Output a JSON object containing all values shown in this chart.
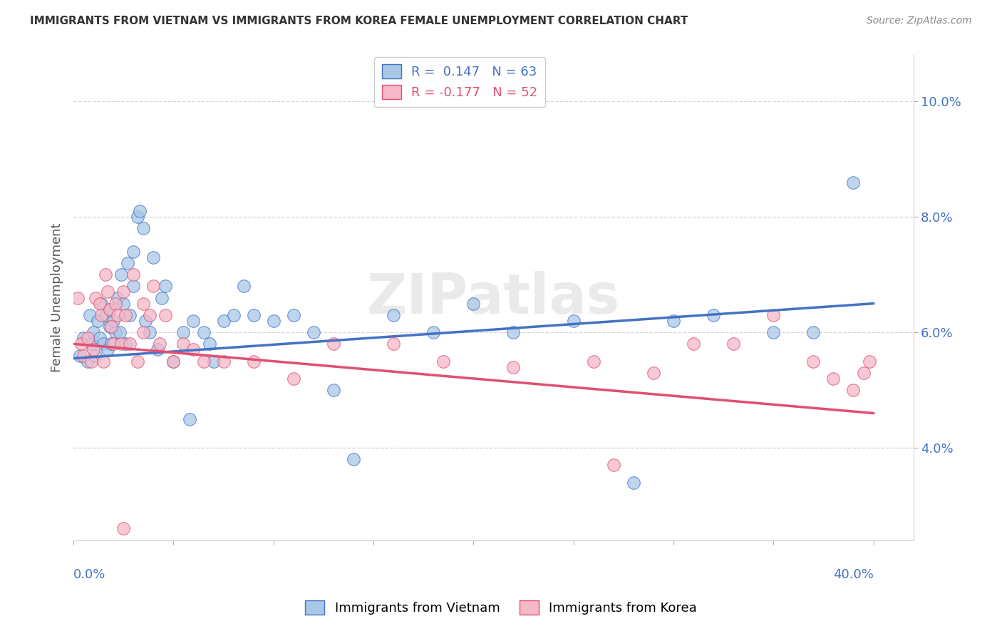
{
  "title": "IMMIGRANTS FROM VIETNAM VS IMMIGRANTS FROM KOREA FEMALE UNEMPLOYMENT CORRELATION CHART",
  "source": "Source: ZipAtlas.com",
  "ylabel": "Female Unemployment",
  "ytick_labels": [
    "4.0%",
    "6.0%",
    "8.0%",
    "10.0%"
  ],
  "ytick_values": [
    0.04,
    0.06,
    0.08,
    0.1
  ],
  "xlim": [
    0.0,
    0.42
  ],
  "ylim": [
    0.024,
    0.108
  ],
  "legend1_R": "0.147",
  "legend1_N": "63",
  "legend2_R": "-0.177",
  "legend2_N": "52",
  "color_vietnam": "#a8c8e8",
  "color_korea": "#f4b8c8",
  "line_color_vietnam": "#4472c4",
  "line_color_korea": "#e05070",
  "vietnam_trend_x0": 0.0,
  "vietnam_trend_y0": 0.0555,
  "vietnam_trend_x1": 0.4,
  "vietnam_trend_y1": 0.065,
  "korea_trend_x0": 0.0,
  "korea_trend_y0": 0.058,
  "korea_trend_x1": 0.4,
  "korea_trend_y1": 0.046,
  "vietnam_x": [
    0.003,
    0.005,
    0.007,
    0.008,
    0.009,
    0.01,
    0.011,
    0.012,
    0.013,
    0.014,
    0.015,
    0.016,
    0.017,
    0.018,
    0.018,
    0.019,
    0.02,
    0.021,
    0.022,
    0.023,
    0.024,
    0.025,
    0.026,
    0.027,
    0.028,
    0.03,
    0.03,
    0.032,
    0.033,
    0.035,
    0.036,
    0.038,
    0.04,
    0.042,
    0.044,
    0.046,
    0.05,
    0.055,
    0.058,
    0.06,
    0.065,
    0.068,
    0.07,
    0.075,
    0.08,
    0.085,
    0.09,
    0.1,
    0.11,
    0.12,
    0.13,
    0.14,
    0.16,
    0.18,
    0.2,
    0.22,
    0.25,
    0.28,
    0.3,
    0.32,
    0.35,
    0.37,
    0.39
  ],
  "vietnam_y": [
    0.056,
    0.059,
    0.055,
    0.063,
    0.058,
    0.06,
    0.056,
    0.062,
    0.059,
    0.065,
    0.058,
    0.063,
    0.057,
    0.061,
    0.064,
    0.058,
    0.062,
    0.06,
    0.066,
    0.06,
    0.07,
    0.065,
    0.058,
    0.072,
    0.063,
    0.074,
    0.068,
    0.08,
    0.081,
    0.078,
    0.062,
    0.06,
    0.073,
    0.057,
    0.066,
    0.068,
    0.055,
    0.06,
    0.045,
    0.062,
    0.06,
    0.058,
    0.055,
    0.062,
    0.063,
    0.068,
    0.063,
    0.062,
    0.063,
    0.06,
    0.05,
    0.038,
    0.063,
    0.06,
    0.065,
    0.06,
    0.062,
    0.034,
    0.062,
    0.063,
    0.06,
    0.06,
    0.086
  ],
  "korea_x": [
    0.002,
    0.004,
    0.005,
    0.007,
    0.009,
    0.01,
    0.011,
    0.013,
    0.014,
    0.015,
    0.016,
    0.017,
    0.018,
    0.019,
    0.02,
    0.021,
    0.022,
    0.024,
    0.025,
    0.026,
    0.028,
    0.03,
    0.032,
    0.035,
    0.038,
    0.04,
    0.043,
    0.046,
    0.05,
    0.055,
    0.06,
    0.065,
    0.075,
    0.09,
    0.11,
    0.13,
    0.16,
    0.185,
    0.22,
    0.26,
    0.29,
    0.31,
    0.33,
    0.35,
    0.37,
    0.38,
    0.39,
    0.398,
    0.025,
    0.035,
    0.27,
    0.395
  ],
  "korea_y": [
    0.066,
    0.058,
    0.056,
    0.059,
    0.055,
    0.057,
    0.066,
    0.065,
    0.063,
    0.055,
    0.07,
    0.067,
    0.064,
    0.061,
    0.058,
    0.065,
    0.063,
    0.058,
    0.067,
    0.063,
    0.058,
    0.07,
    0.055,
    0.065,
    0.063,
    0.068,
    0.058,
    0.063,
    0.055,
    0.058,
    0.057,
    0.055,
    0.055,
    0.055,
    0.052,
    0.058,
    0.058,
    0.055,
    0.054,
    0.055,
    0.053,
    0.058,
    0.058,
    0.063,
    0.055,
    0.052,
    0.05,
    0.055,
    0.026,
    0.06,
    0.037,
    0.053
  ]
}
